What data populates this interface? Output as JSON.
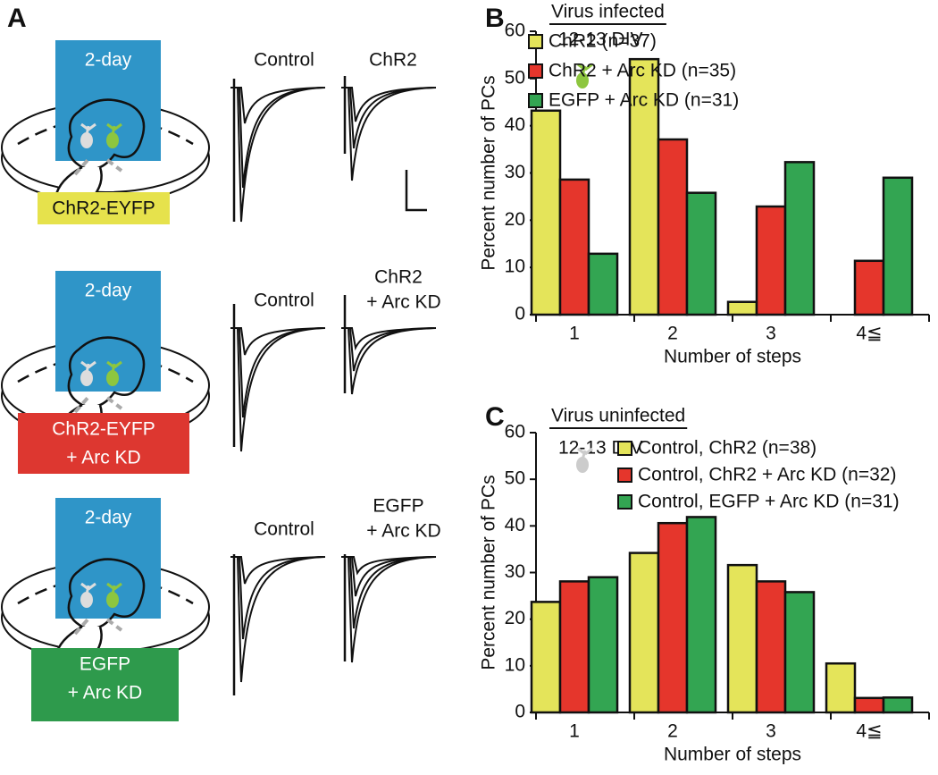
{
  "panel_a": {
    "label": "A",
    "rows": [
      {
        "duration": "2-day",
        "condition": [
          "ChR2-EYFP"
        ],
        "traces": [
          [
            "Control"
          ],
          [
            "ChR2"
          ]
        ]
      },
      {
        "duration": "2-day",
        "condition": [
          "ChR2-EYFP",
          "+ Arc KD"
        ],
        "traces": [
          [
            "Control"
          ],
          [
            "ChR2",
            "+ Arc KD"
          ]
        ]
      },
      {
        "duration": "2-day",
        "condition": [
          "EGFP",
          "+ Arc KD"
        ],
        "traces": [
          [
            "Control"
          ],
          [
            "EGFP",
            "+ Arc KD"
          ]
        ]
      }
    ]
  },
  "chart_data": [
    {
      "type": "bar",
      "panel": "B",
      "heading": "Virus infected",
      "subheading": "12-13 DIV",
      "xlabel": "Number of steps",
      "ylabel": "Percent number of PCs",
      "categories": [
        "1",
        "2",
        "3",
        "4≦"
      ],
      "series": [
        {
          "name": "ChR2 (n=37)",
          "color": "#e4e45a",
          "values": [
            43.2,
            54.1,
            2.7,
            0
          ]
        },
        {
          "name": "ChR2 + Arc KD (n=35)",
          "color": "#e5362c",
          "values": [
            28.6,
            37.1,
            22.9,
            11.4
          ]
        },
        {
          "name": "EGFP + Arc KD (n=31)",
          "color": "#33a552",
          "values": [
            12.9,
            25.8,
            32.3,
            29.0
          ]
        }
      ],
      "ylim": [
        0,
        60
      ],
      "yticks": [
        0,
        10,
        20,
        30,
        40,
        50,
        60
      ]
    },
    {
      "type": "bar",
      "panel": "C",
      "heading": "Virus uninfected",
      "subheading": "12-13 DIV",
      "xlabel": "Number of steps",
      "ylabel": "Percent number of PCs",
      "categories": [
        "1",
        "2",
        "3",
        "4≦"
      ],
      "series": [
        {
          "name": "Control, ChR2 (n=38)",
          "color": "#e4e45a",
          "values": [
            23.7,
            34.2,
            31.6,
            10.5
          ]
        },
        {
          "name": "Control, ChR2 + Arc KD (n=32)",
          "color": "#e5362c",
          "values": [
            28.1,
            40.6,
            28.1,
            3.1
          ]
        },
        {
          "name": "Control, EGFP + Arc KD (n=31)",
          "color": "#33a552",
          "values": [
            29.0,
            41.9,
            25.8,
            3.2
          ]
        }
      ],
      "ylim": [
        0,
        60
      ],
      "yticks": [
        0,
        10,
        20,
        30,
        40,
        50,
        60
      ]
    }
  ]
}
